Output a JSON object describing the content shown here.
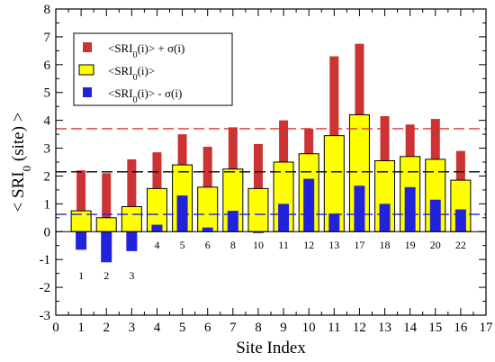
{
  "chart_data": {
    "type": "bar",
    "xlabel": "Site Index",
    "ylabel": "< SRI₀ (site) >",
    "xlim": [
      0,
      17
    ],
    "ylim": [
      -3,
      8
    ],
    "xticks": [
      0,
      1,
      2,
      3,
      4,
      5,
      6,
      7,
      8,
      9,
      10,
      11,
      12,
      13,
      14,
      15,
      16,
      17
    ],
    "yticks": [
      -3,
      -2,
      -1,
      0,
      1,
      2,
      3,
      4,
      5,
      6,
      7,
      8
    ],
    "x": [
      1,
      2,
      3,
      4,
      5,
      6,
      7,
      8,
      9,
      10,
      11,
      12,
      13,
      14,
      15,
      16
    ],
    "site_labels": [
      "1",
      "2",
      "3",
      "4",
      "5",
      "6",
      "8",
      "10",
      "11",
      "12",
      "13",
      "17",
      "18",
      "19",
      "20",
      "22"
    ],
    "series": [
      {
        "name": "<SRI0(i)> + σ(i)",
        "color": "#cc3333",
        "values": [
          2.2,
          2.1,
          2.6,
          2.85,
          3.5,
          3.05,
          3.75,
          3.15,
          4.0,
          3.7,
          6.3,
          6.75,
          4.15,
          3.85,
          4.05,
          2.9
        ]
      },
      {
        "name": "<SRI0(i)>",
        "color": "#ffff00",
        "values": [
          0.75,
          0.5,
          0.9,
          1.55,
          2.4,
          1.6,
          2.25,
          1.55,
          2.5,
          2.8,
          3.45,
          4.2,
          2.55,
          2.7,
          2.6,
          1.85
        ]
      },
      {
        "name": "<SRI0(i)> - σ(i)",
        "color": "#2222dd",
        "values": [
          -0.65,
          -1.1,
          -0.7,
          0.25,
          1.3,
          0.15,
          0.75,
          -0.05,
          1.0,
          1.9,
          0.65,
          1.65,
          1.0,
          1.6,
          1.15,
          0.8
        ]
      }
    ],
    "reference_lines": [
      {
        "y": 3.7,
        "color": "#e03030",
        "style": "dashed"
      },
      {
        "y": 2.15,
        "color": "#000000",
        "style": "dashed"
      },
      {
        "y": 0.62,
        "color": "#2222dd",
        "style": "dashed"
      }
    ],
    "legend": {
      "placement": "top-left",
      "entries": [
        {
          "label": "<SRI",
          "sub": "0",
          "rest": "(i)> + σ(i)",
          "color": "#cc3333"
        },
        {
          "label": "<SRI",
          "sub": "0",
          "rest": "(i)>",
          "color": "#ffff00"
        },
        {
          "label": "<SRI",
          "sub": "0",
          "rest": "(i)> - σ(i)",
          "color": "#2222dd"
        }
      ]
    },
    "grid": false
  }
}
